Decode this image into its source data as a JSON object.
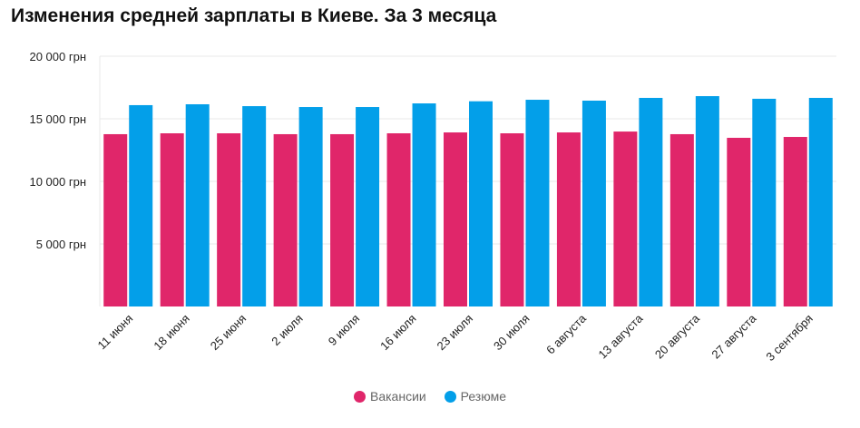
{
  "chart_data": {
    "type": "bar",
    "title": "Изменения средней зарплаты в Киеве. За 3 месяца",
    "categories": [
      "11 июня",
      "18 июня",
      "25 июня",
      "2 июля",
      "9 июля",
      "16 июля",
      "23 июля",
      "30 июля",
      "6 августа",
      "13 августа",
      "20 августа",
      "27 августа",
      "3 сентября"
    ],
    "series": [
      {
        "name": "Вакансии",
        "color": "#e0266a",
        "values": [
          13770,
          13840,
          13840,
          13770,
          13770,
          13840,
          13910,
          13840,
          13910,
          13980,
          13770,
          13480,
          13550
        ]
      },
      {
        "name": "Резюме",
        "color": "#039fe9",
        "values": [
          16090,
          16160,
          16010,
          15940,
          15940,
          16230,
          16400,
          16520,
          16450,
          16670,
          16810,
          16600,
          16670
        ]
      }
    ],
    "ylim": [
      0,
      20000
    ],
    "yticks": [
      {
        "value": 5000,
        "label": "5 000 грн"
      },
      {
        "value": 10000,
        "label": "10 000 грн"
      },
      {
        "value": 15000,
        "label": "15 000 грн"
      },
      {
        "value": 20000,
        "label": "20 000 грн"
      }
    ],
    "grid": true,
    "legend": "bottom-center"
  }
}
